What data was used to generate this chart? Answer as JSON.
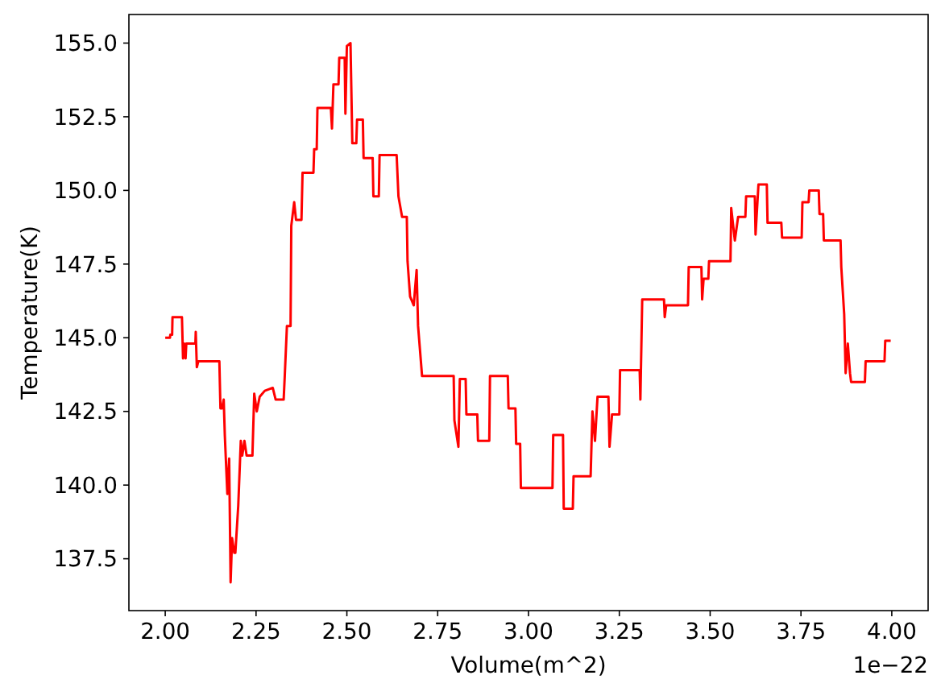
{
  "chart_data": {
    "type": "line",
    "xlabel": "Volume(m^2)",
    "ylabel": "Temperature(K)",
    "annotations": [
      "1e−22"
    ],
    "color": "#ff0000",
    "x": [
      2.0,
      2.013,
      2.014,
      2.019,
      2.02,
      2.046,
      2.049,
      2.052,
      2.056,
      2.058,
      2.083,
      2.084,
      2.087,
      2.091,
      2.149,
      2.152,
      2.156,
      2.161,
      2.164,
      2.171,
      2.176,
      2.18,
      2.184,
      2.19,
      2.193,
      2.201,
      2.208,
      2.212,
      2.218,
      2.224,
      2.24,
      2.245,
      2.252,
      2.26,
      2.274,
      2.296,
      2.304,
      2.326,
      2.329,
      2.335,
      2.345,
      2.347,
      2.355,
      2.36,
      2.375,
      2.378,
      2.408,
      2.41,
      2.417,
      2.419,
      2.456,
      2.459,
      2.463,
      2.477,
      2.479,
      2.494,
      2.496,
      2.5,
      2.51,
      2.515,
      2.526,
      2.528,
      2.544,
      2.546,
      2.571,
      2.573,
      2.588,
      2.59,
      2.637,
      2.642,
      2.652,
      2.665,
      2.667,
      2.674,
      2.684,
      2.692,
      2.696,
      2.707,
      2.794,
      2.796,
      2.807,
      2.811,
      2.827,
      2.829,
      2.859,
      2.861,
      2.892,
      2.894,
      2.943,
      2.945,
      2.964,
      2.966,
      2.977,
      2.979,
      3.066,
      3.068,
      3.095,
      3.097,
      3.122,
      3.124,
      3.171,
      3.176,
      3.183,
      3.19,
      3.22,
      3.223,
      3.23,
      3.25,
      3.252,
      3.306,
      3.308,
      3.313,
      3.373,
      3.375,
      3.379,
      3.439,
      3.441,
      3.476,
      3.478,
      3.482,
      3.495,
      3.497,
      3.556,
      3.558,
      3.568,
      3.577,
      3.597,
      3.599,
      3.623,
      3.625,
      3.633,
      3.656,
      3.658,
      3.696,
      3.698,
      3.752,
      3.754,
      3.771,
      3.773,
      3.799,
      3.801,
      3.811,
      3.813,
      3.859,
      3.861,
      3.869,
      3.873,
      3.879,
      3.885,
      3.888,
      3.926,
      3.928,
      3.98,
      3.982,
      3.997
    ],
    "values": [
      145.0,
      145.0,
      145.1,
      145.1,
      145.7,
      145.7,
      144.3,
      144.8,
      144.3,
      144.8,
      144.8,
      145.2,
      144.0,
      144.2,
      144.2,
      142.6,
      142.6,
      142.9,
      141.7,
      139.7,
      140.9,
      136.7,
      138.2,
      137.7,
      137.7,
      139.3,
      141.5,
      141.0,
      141.5,
      141.0,
      141.0,
      143.1,
      142.5,
      143.0,
      143.2,
      143.3,
      142.9,
      142.9,
      143.7,
      145.4,
      145.4,
      148.8,
      149.6,
      149.0,
      149.0,
      150.6,
      150.6,
      151.4,
      151.4,
      152.8,
      152.8,
      152.1,
      153.6,
      153.6,
      154.5,
      154.5,
      152.6,
      154.9,
      155.0,
      151.6,
      151.6,
      152.4,
      152.4,
      151.1,
      151.1,
      149.8,
      149.8,
      151.2,
      151.2,
      149.8,
      149.1,
      149.1,
      147.6,
      146.4,
      146.1,
      147.3,
      145.4,
      143.7,
      143.7,
      142.2,
      141.3,
      143.6,
      143.6,
      142.4,
      142.4,
      141.5,
      141.5,
      143.7,
      143.7,
      142.6,
      142.6,
      141.4,
      141.4,
      139.9,
      139.9,
      141.7,
      141.7,
      139.2,
      139.2,
      140.3,
      140.3,
      142.5,
      141.5,
      143.0,
      143.0,
      141.3,
      142.4,
      142.4,
      143.9,
      143.9,
      142.9,
      146.3,
      146.3,
      145.7,
      146.1,
      146.1,
      147.4,
      147.4,
      146.3,
      147.0,
      147.0,
      147.6,
      147.6,
      149.4,
      148.3,
      149.1,
      149.1,
      149.8,
      149.8,
      148.5,
      150.2,
      150.2,
      148.9,
      148.9,
      148.4,
      148.4,
      149.6,
      149.6,
      150.0,
      150.0,
      149.2,
      149.2,
      148.3,
      148.3,
      147.4,
      145.8,
      143.8,
      144.8,
      143.8,
      143.5,
      143.5,
      144.2,
      144.2,
      144.9,
      144.9
    ],
    "xlim": [
      1.9,
      4.1
    ],
    "xticks": [
      {
        "value": 2,
        "label": "2.00"
      },
      {
        "value": 2.25,
        "label": "2.25"
      },
      {
        "value": 2.5,
        "label": "2.50"
      },
      {
        "value": 2.75,
        "label": "2.75"
      },
      {
        "value": 3,
        "label": "3.00"
      },
      {
        "value": 3.25,
        "label": "3.25"
      },
      {
        "value": 3.5,
        "label": "3.50"
      },
      {
        "value": 3.75,
        "label": "3.75"
      },
      {
        "value": 4,
        "label": "4.00"
      }
    ],
    "ylim": [
      135.74,
      155.97
    ],
    "yticks": [
      137.5,
      {
        "value": 140,
        "label": "140.0"
      },
      142.5,
      {
        "value": 145,
        "label": "145.0"
      },
      147.5,
      {
        "value": 150,
        "label": "150.0"
      },
      152.5,
      {
        "value": 155,
        "label": "155.0"
      }
    ]
  }
}
